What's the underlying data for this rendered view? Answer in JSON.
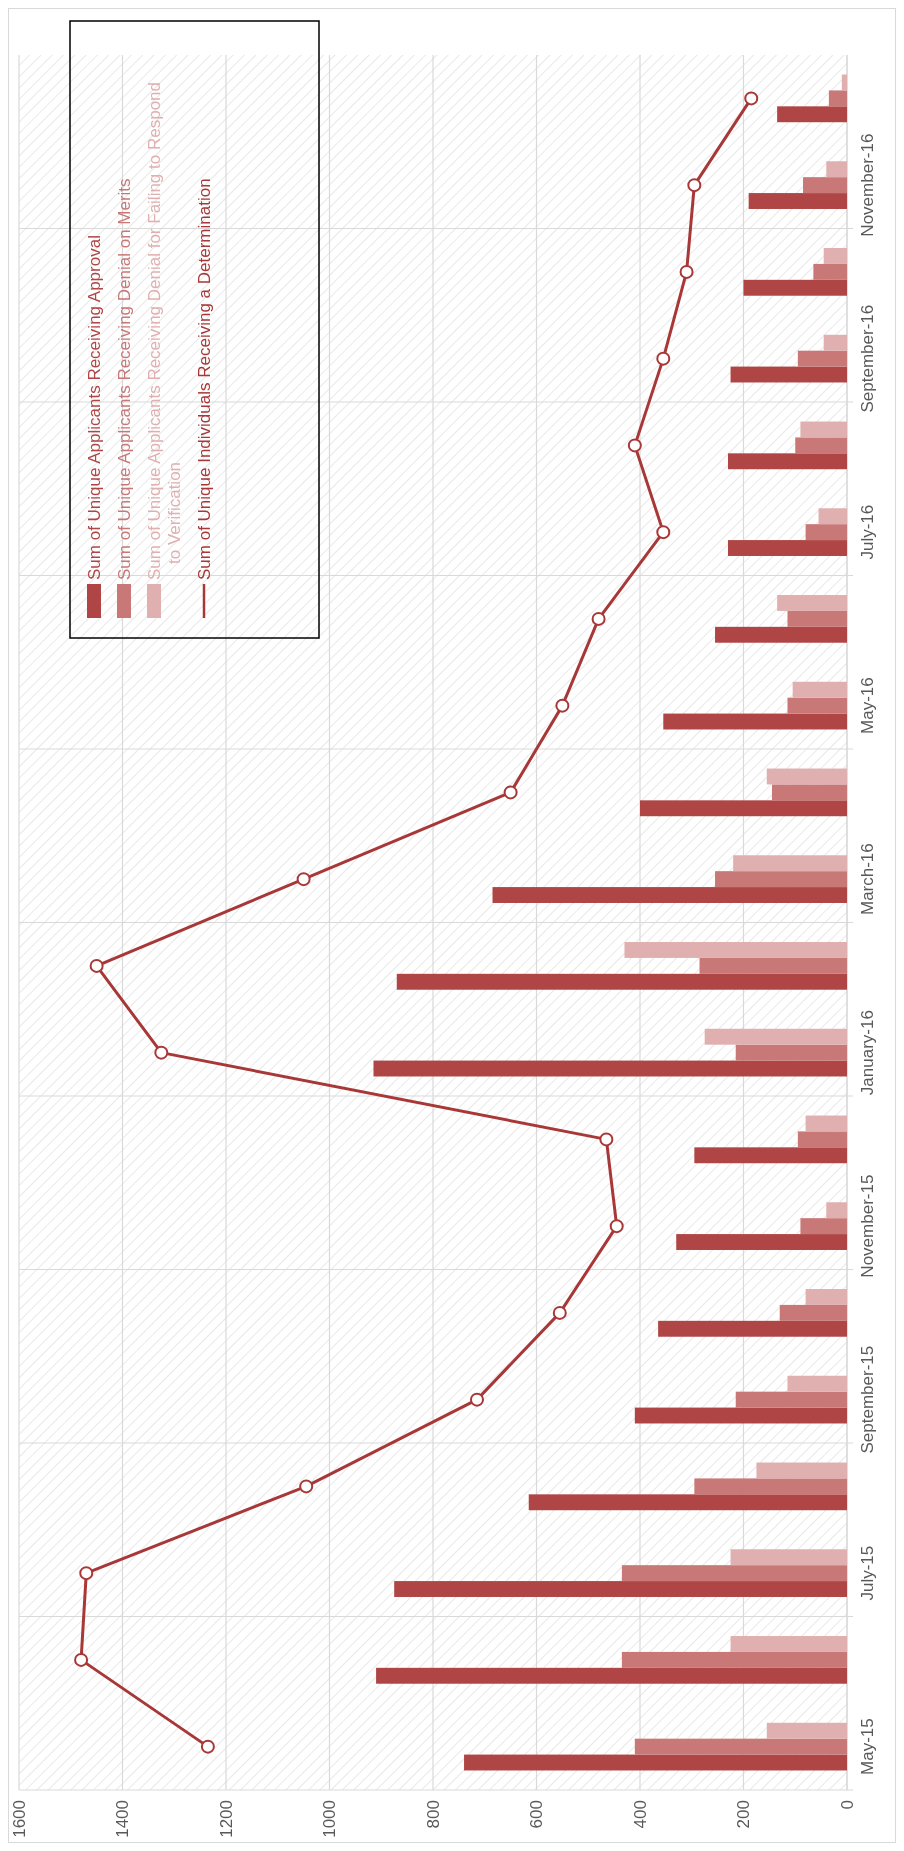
{
  "chart_data": {
    "type": "bar",
    "orientation": "horizontal",
    "categories": [
      null,
      "November-16",
      null,
      "September-16",
      null,
      "July-16",
      null,
      "May-16",
      null,
      "March-16",
      null,
      "January-16",
      null,
      "November-15",
      null,
      "September-15",
      null,
      "July-15",
      null,
      "May-15"
    ],
    "series": [
      {
        "name": "Sum of Unique Applicants Receiving Approval",
        "color": "#b04545",
        "values": [
          135,
          190,
          200,
          225,
          230,
          230,
          255,
          355,
          400,
          685,
          870,
          915,
          295,
          330,
          365,
          410,
          615,
          875,
          910,
          740
        ]
      },
      {
        "name": "Sum of Unique Applicants Receiving Denial on Merits",
        "color": "#c97878",
        "values": [
          35,
          85,
          65,
          95,
          100,
          80,
          115,
          115,
          145,
          255,
          285,
          215,
          95,
          90,
          130,
          215,
          295,
          435,
          435,
          410
        ]
      },
      {
        "name": "Sum of Unique Applicants Receiving Denial for Failing to Respond to Verification",
        "color": "#e0b0b0",
        "values": [
          10,
          40,
          45,
          45,
          90,
          55,
          135,
          105,
          155,
          220,
          430,
          275,
          80,
          40,
          80,
          115,
          175,
          225,
          225,
          155
        ]
      },
      {
        "name": "Sum of Unique Individuals Receiving a Determination",
        "type": "line",
        "color": "#a83838",
        "marker": "circle",
        "values": [
          185,
          295,
          310,
          355,
          410,
          355,
          480,
          550,
          650,
          1050,
          1450,
          1325,
          465,
          445,
          555,
          715,
          1045,
          1470,
          1480,
          1235
        ]
      }
    ],
    "xlim": [
      1600,
      0
    ],
    "xticks": [
      0,
      200,
      400,
      600,
      800,
      1000,
      1200,
      1400,
      1600
    ],
    "grid": true,
    "legend": "top left"
  }
}
